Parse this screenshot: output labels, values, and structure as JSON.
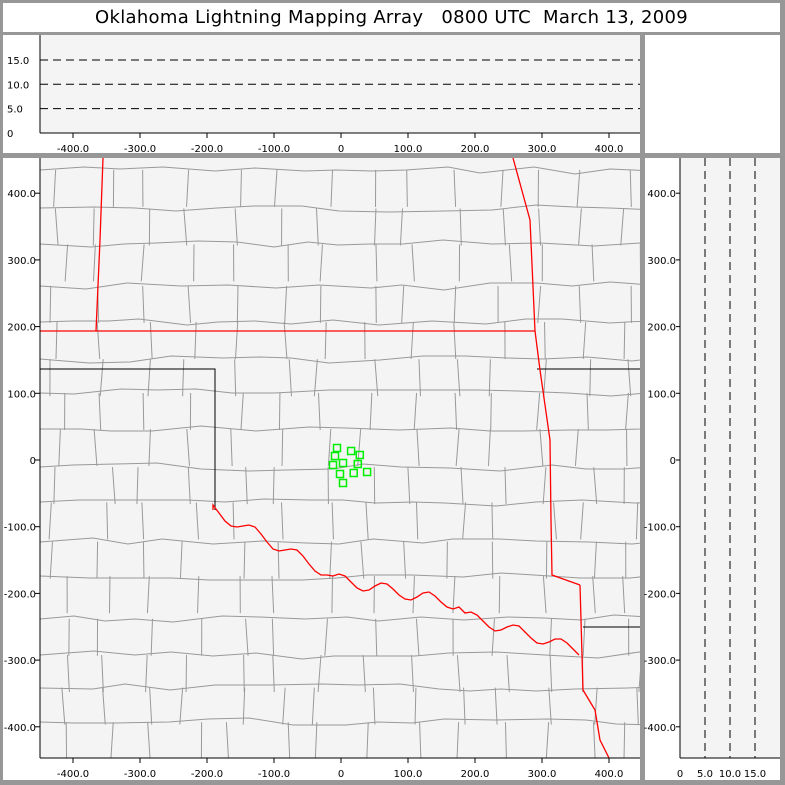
{
  "title": "Oklahoma Lightning Mapping Array   0800 UTC  March 13, 2009",
  "colors": {
    "frame": "#979797",
    "plot_bg": "#f4f4f4",
    "county": "#999999",
    "state_border": "#ff0000",
    "source": "#00ee00"
  },
  "chart_data": [
    {
      "type": "scatter",
      "panel": "plan-view",
      "xlim": [
        -450,
        450
      ],
      "ylim": [
        -450,
        450
      ],
      "x_ticks": [
        "-400.0",
        "-300.0",
        "-200.0",
        "-100.0",
        "0",
        "100.0",
        "200.0",
        "300.0",
        "400.0"
      ],
      "y_ticks": [
        "400.0",
        "300.0",
        "200.0",
        "100.0",
        "0",
        "-100.0",
        "-200.0",
        "-300.0",
        "-400.0"
      ],
      "background": "county map of Oklahoma and surrounding states",
      "series": [
        {
          "marker": "hollow-square",
          "x": [
            -6,
            15,
            28,
            -9,
            3,
            -12,
            25,
            -1.5,
            19,
            39,
            3
          ],
          "y": [
            18,
            13.5,
            7.5,
            6,
            -4.5,
            -7.5,
            -6,
            -21,
            -19.5,
            -18,
            -34.5
          ]
        }
      ]
    },
    {
      "type": "scatter",
      "panel": "east-west-altitude",
      "xlim": [
        -450,
        450
      ],
      "ylim": [
        0,
        20
      ],
      "x_ticks": [
        "-400.0",
        "-300.0",
        "-200.0",
        "-100.0",
        "0",
        "100.0",
        "200.0",
        "300.0",
        "400.0"
      ],
      "y_ticks": [
        "0",
        "5.0",
        "10.0",
        "15.0"
      ],
      "grid": "dashed at 5, 10, 15",
      "series": []
    },
    {
      "type": "scatter",
      "panel": "altitude-north-south",
      "xlim": [
        0,
        20
      ],
      "ylim": [
        -450,
        450
      ],
      "x_ticks": [
        "0",
        "5.0",
        "10.0",
        "15.0"
      ],
      "y_ticks": [
        "400.0",
        "300.0",
        "200.0",
        "100.0",
        "0",
        "-100.0",
        "-200.0",
        "-300.0",
        "-400.0"
      ],
      "grid": "dashed at 5, 10, 15",
      "series": []
    }
  ]
}
